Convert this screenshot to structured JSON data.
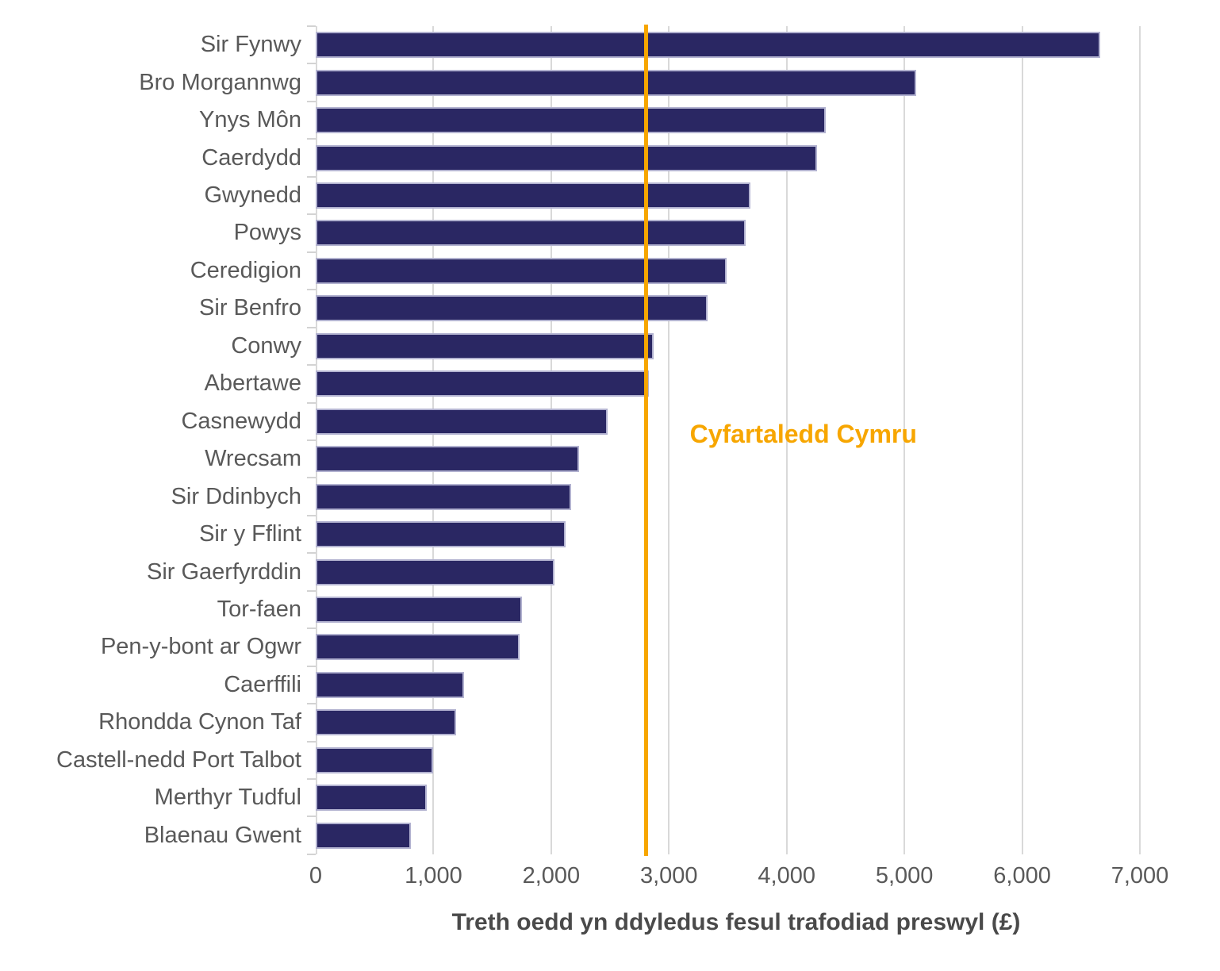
{
  "chart_data": {
    "type": "bar",
    "orientation": "horizontal",
    "title": "",
    "xlabel": "Treth oedd yn ddyledus fesul trafodiad preswyl (£)",
    "ylabel": "",
    "xlim": [
      0,
      7000
    ],
    "x_ticks": [
      0,
      1000,
      2000,
      3000,
      4000,
      5000,
      6000,
      7000
    ],
    "x_tick_labels": [
      "0",
      "1,000",
      "2,000",
      "3,000",
      "4,000",
      "5,000",
      "6,000",
      "7,000"
    ],
    "grid": "vertical",
    "legend": "none",
    "categories": [
      "Sir Fynwy",
      "Bro Morgannwg",
      "Ynys Môn",
      "Caerdydd",
      "Gwynedd",
      "Powys",
      "Ceredigion",
      "Sir Benfro",
      "Conwy",
      "Abertawe",
      "Casnewydd",
      "Wrecsam",
      "Sir Ddinbych",
      "Sir y Fflint",
      "Sir Gaerfyrddin",
      "Tor-faen",
      "Pen-y-bont ar Ogwr",
      "Caerffili",
      "Rhondda Cynon Taf",
      "Castell-nedd Port Talbot",
      "Merthyr Tudful",
      "Blaenau Gwent"
    ],
    "values": [
      6660,
      5100,
      4330,
      4260,
      3690,
      3650,
      3490,
      3330,
      2870,
      2830,
      2480,
      2240,
      2170,
      2120,
      2030,
      1750,
      1730,
      1260,
      1190,
      1000,
      940,
      810
    ],
    "average_line": {
      "label": "Cyfartaledd Cymru",
      "value": 2800
    },
    "colors": {
      "bar": "#2a2763",
      "bar_border": "#b2b2d0",
      "average_line": "#f7a600",
      "gridline": "#d9d9d9",
      "tick_text": "#595959",
      "axis_title_text": "#4a4a4a"
    }
  }
}
